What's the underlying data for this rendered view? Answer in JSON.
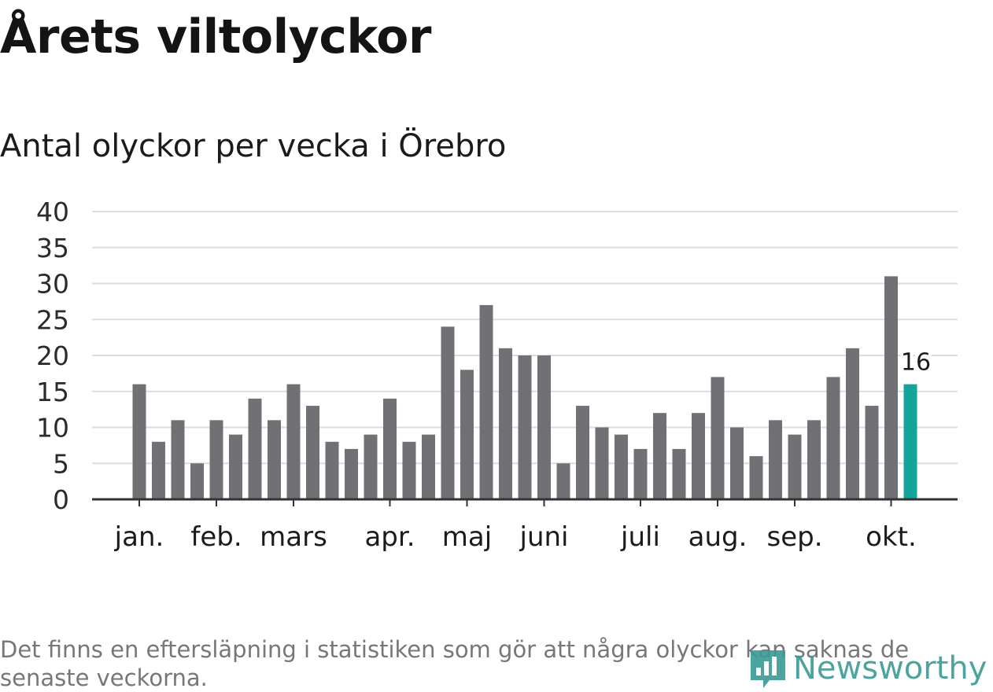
{
  "title": "Årets viltolyckor",
  "subtitle": "Antal olyckor per vecka i Örebro",
  "note": "Det finns en eftersläpning i statistiken som gör att några olyckor kan saknas de senaste veckorna.",
  "logo": {
    "text": "Newsworthy",
    "icon": "newsworthy-logo-icon"
  },
  "colors": {
    "bar": "#707075",
    "highlight": "#14a59a",
    "grid": "#dcdcdc",
    "axis": "#333333"
  },
  "chart_data": {
    "type": "bar",
    "xlabel": "",
    "ylabel": "",
    "ylim": [
      0,
      40
    ],
    "yticks": [
      0,
      5,
      10,
      15,
      20,
      25,
      30,
      35,
      40
    ],
    "grid": true,
    "month_labels": [
      {
        "label": "jan.",
        "week": 1
      },
      {
        "label": "feb.",
        "week": 5
      },
      {
        "label": "mars",
        "week": 9
      },
      {
        "label": "apr.",
        "week": 14
      },
      {
        "label": "maj",
        "week": 18
      },
      {
        "label": "juni",
        "week": 22
      },
      {
        "label": "juli",
        "week": 27
      },
      {
        "label": "aug.",
        "week": 31
      },
      {
        "label": "sep.",
        "week": 35
      },
      {
        "label": "okt.",
        "week": 40
      }
    ],
    "weeks": [
      1,
      2,
      3,
      4,
      5,
      6,
      7,
      8,
      9,
      10,
      11,
      12,
      13,
      14,
      15,
      16,
      17,
      18,
      19,
      20,
      21,
      22,
      23,
      24,
      25,
      26,
      27,
      28,
      29,
      30,
      31,
      32,
      33,
      34,
      35,
      36,
      37,
      38,
      39,
      40,
      41
    ],
    "values": [
      16,
      8,
      11,
      5,
      11,
      9,
      14,
      11,
      16,
      13,
      8,
      7,
      9,
      14,
      8,
      9,
      24,
      18,
      27,
      21,
      20,
      20,
      5,
      13,
      10,
      9,
      7,
      12,
      7,
      12,
      17,
      10,
      6,
      11,
      9,
      11,
      17,
      21,
      13,
      31,
      16
    ],
    "highlight_last": true,
    "data_labels": [
      {
        "week": 41,
        "text": "16"
      }
    ]
  }
}
